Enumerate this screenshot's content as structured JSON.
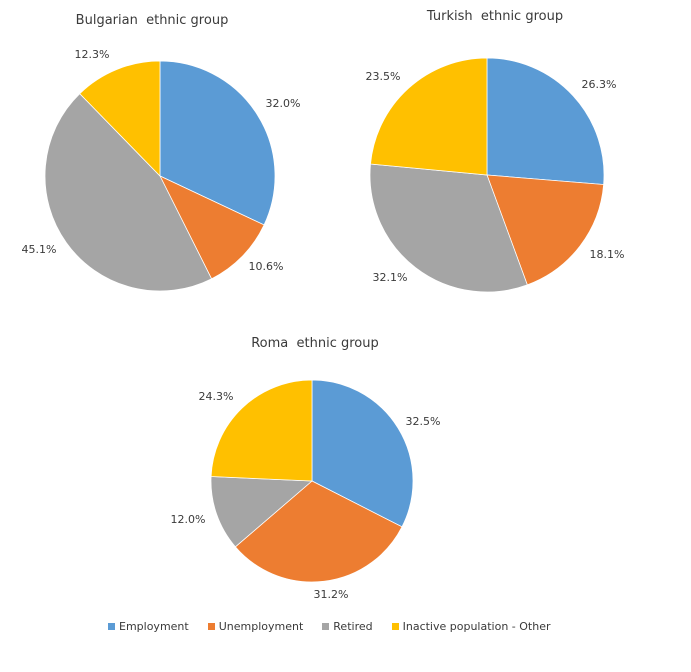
{
  "palette": [
    "#5B9BD5",
    "#ED7D31",
    "#A5A5A5",
    "#FFC000"
  ],
  "chart_data": [
    {
      "type": "pie",
      "id": "bulgarian",
      "title": "Bulgarian  ethnic group",
      "categories": [
        "Employment",
        "Unemployment",
        "Retired",
        "Inactive population - Other"
      ],
      "values": [
        32.0,
        10.6,
        45.1,
        12.3
      ],
      "labels": [
        "32.0%",
        "10.6%",
        "45.1%",
        "12.3%"
      ],
      "start_angle_deg": 0,
      "direction": "clockwise",
      "slice_colors": [
        "#5B9BD5",
        "#ED7D31",
        "#A5A5A5",
        "#FFC000"
      ]
    },
    {
      "type": "pie",
      "id": "turkish",
      "title": "Turkish  ethnic group",
      "categories": [
        "Employment",
        "Unemployment",
        "Retired",
        "Inactive population - Other"
      ],
      "values": [
        26.3,
        18.1,
        32.1,
        23.5
      ],
      "labels": [
        "26.3%",
        "18.1%",
        "32.1%",
        "23.5%"
      ],
      "start_angle_deg": 0,
      "direction": "clockwise",
      "slice_colors": [
        "#5B9BD5",
        "#ED7D31",
        "#A5A5A5",
        "#FFC000"
      ]
    },
    {
      "type": "pie",
      "id": "roma",
      "title": "Roma  ethnic group",
      "categories": [
        "Employment",
        "Unemployment",
        "Retired",
        "Inactive population - Other"
      ],
      "values": [
        32.5,
        31.2,
        12.0,
        24.3
      ],
      "labels": [
        "32.5%",
        "31.2%",
        "12.0%",
        "24.3%"
      ],
      "start_angle_deg": 0,
      "direction": "clockwise",
      "slice_colors": [
        "#5B9BD5",
        "#ED7D31",
        "#A5A5A5",
        "#FFC000"
      ]
    }
  ],
  "legend": {
    "position": "bottom",
    "items": [
      {
        "label": "Employment",
        "color": "#5B9BD5"
      },
      {
        "label": "Unemployment",
        "color": "#ED7D31"
      },
      {
        "label": "Retired",
        "color": "#A5A5A5"
      },
      {
        "label": "Inactive population - Other",
        "color": "#FFC000"
      }
    ]
  }
}
